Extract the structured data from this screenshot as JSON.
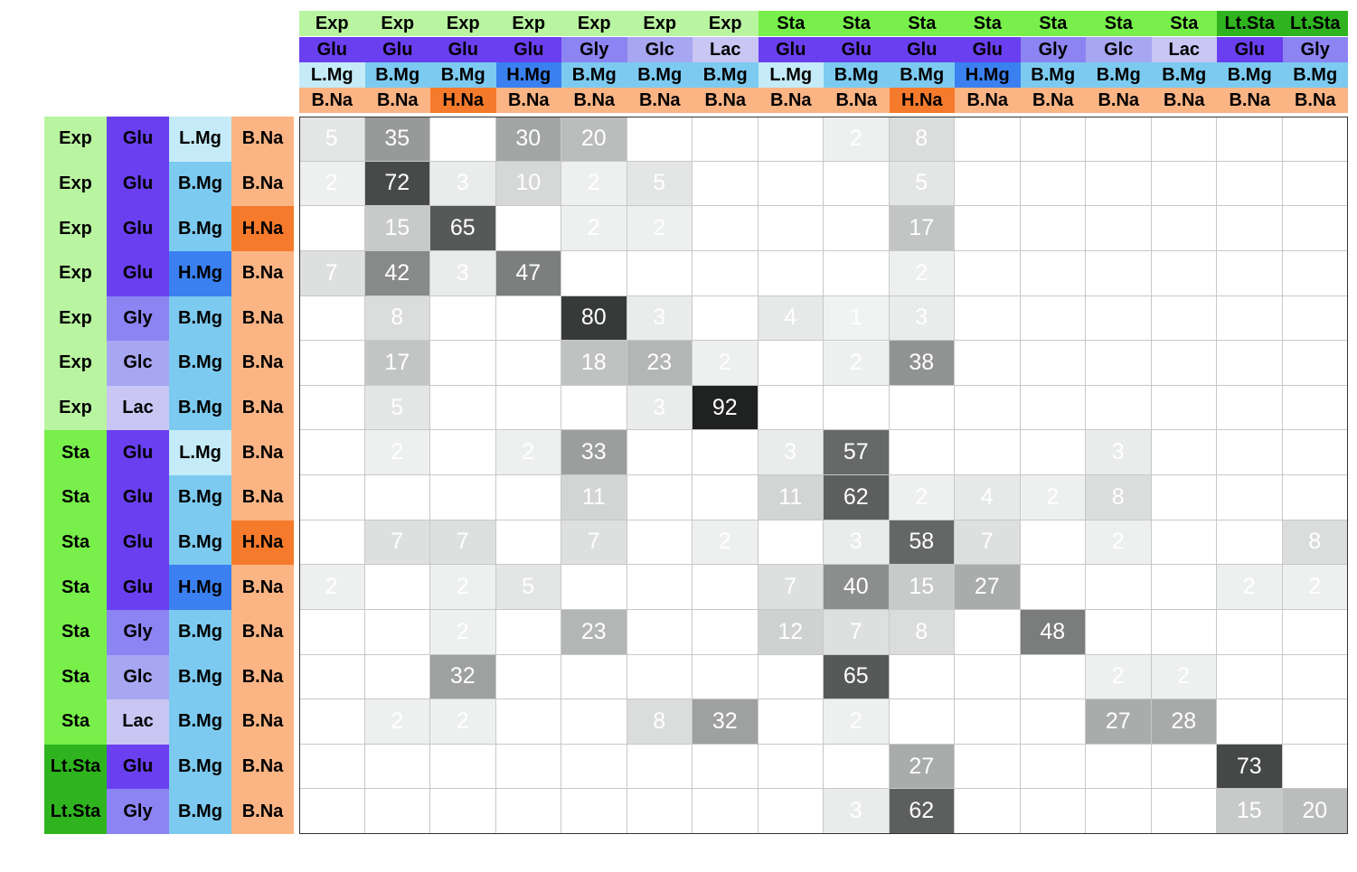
{
  "chart_data": {
    "type": "heatmap",
    "colors": {
      "growth": {
        "Exp": "#b9f4a0",
        "Sta": "#78ef4a",
        "Lt.Sta": "#2fb41f"
      },
      "carbon": {
        "Glu": "#6a3ff0",
        "Gly": "#8c84f2",
        "Glc": "#a7a6f1",
        "Lac": "#c9c6f4"
      },
      "mg": {
        "L.Mg": "#c4ebf7",
        "B.Mg": "#7ccaf0",
        "H.Mg": "#3a80f0"
      },
      "na": {
        "B.Na": "#fbb484",
        "H.Na": "#f57a2c"
      }
    },
    "conditions": [
      {
        "growth": "Exp",
        "carbon": "Glu",
        "mg": "L.Mg",
        "na": "B.Na"
      },
      {
        "growth": "Exp",
        "carbon": "Glu",
        "mg": "B.Mg",
        "na": "B.Na"
      },
      {
        "growth": "Exp",
        "carbon": "Glu",
        "mg": "B.Mg",
        "na": "H.Na"
      },
      {
        "growth": "Exp",
        "carbon": "Glu",
        "mg": "H.Mg",
        "na": "B.Na"
      },
      {
        "growth": "Exp",
        "carbon": "Gly",
        "mg": "B.Mg",
        "na": "B.Na"
      },
      {
        "growth": "Exp",
        "carbon": "Glc",
        "mg": "B.Mg",
        "na": "B.Na"
      },
      {
        "growth": "Exp",
        "carbon": "Lac",
        "mg": "B.Mg",
        "na": "B.Na"
      },
      {
        "growth": "Sta",
        "carbon": "Glu",
        "mg": "L.Mg",
        "na": "B.Na"
      },
      {
        "growth": "Sta",
        "carbon": "Glu",
        "mg": "B.Mg",
        "na": "B.Na"
      },
      {
        "growth": "Sta",
        "carbon": "Glu",
        "mg": "B.Mg",
        "na": "H.Na"
      },
      {
        "growth": "Sta",
        "carbon": "Glu",
        "mg": "H.Mg",
        "na": "B.Na"
      },
      {
        "growth": "Sta",
        "carbon": "Gly",
        "mg": "B.Mg",
        "na": "B.Na"
      },
      {
        "growth": "Sta",
        "carbon": "Glc",
        "mg": "B.Mg",
        "na": "B.Na"
      },
      {
        "growth": "Sta",
        "carbon": "Lac",
        "mg": "B.Mg",
        "na": "B.Na"
      },
      {
        "growth": "Lt.Sta",
        "carbon": "Glu",
        "mg": "B.Mg",
        "na": "B.Na"
      },
      {
        "growth": "Lt.Sta",
        "carbon": "Gly",
        "mg": "B.Mg",
        "na": "B.Na"
      }
    ],
    "matrix": [
      [
        5,
        35,
        null,
        30,
        20,
        null,
        null,
        null,
        2,
        8,
        null,
        null,
        null,
        null,
        null,
        null
      ],
      [
        2,
        72,
        3,
        10,
        2,
        5,
        null,
        null,
        null,
        5,
        null,
        null,
        null,
        null,
        null,
        null
      ],
      [
        null,
        15,
        65,
        null,
        2,
        2,
        null,
        null,
        null,
        17,
        null,
        null,
        null,
        null,
        null,
        null
      ],
      [
        7,
        42,
        3,
        47,
        null,
        null,
        null,
        null,
        null,
        2,
        null,
        null,
        null,
        null,
        null,
        null
      ],
      [
        null,
        8,
        null,
        null,
        80,
        3,
        null,
        4,
        1,
        3,
        null,
        null,
        null,
        null,
        null,
        null
      ],
      [
        null,
        17,
        null,
        null,
        18,
        23,
        2,
        null,
        2,
        38,
        null,
        null,
        null,
        null,
        null,
        null
      ],
      [
        null,
        5,
        null,
        null,
        null,
        3,
        92,
        null,
        null,
        null,
        null,
        null,
        null,
        null,
        null,
        null
      ],
      [
        null,
        2,
        null,
        2,
        33,
        null,
        null,
        3,
        57,
        null,
        null,
        null,
        3,
        null,
        null,
        null
      ],
      [
        null,
        null,
        null,
        null,
        11,
        null,
        null,
        11,
        62,
        2,
        4,
        2,
        8,
        null,
        null,
        null
      ],
      [
        null,
        7,
        7,
        null,
        7,
        null,
        2,
        null,
        3,
        58,
        7,
        null,
        2,
        null,
        null,
        8
      ],
      [
        2,
        null,
        2,
        5,
        null,
        null,
        null,
        7,
        40,
        15,
        27,
        null,
        null,
        null,
        2,
        2
      ],
      [
        null,
        null,
        2,
        null,
        23,
        null,
        null,
        12,
        7,
        8,
        null,
        48,
        null,
        null,
        null,
        null
      ],
      [
        null,
        null,
        32,
        null,
        null,
        null,
        null,
        null,
        65,
        null,
        null,
        null,
        2,
        2,
        null,
        null
      ],
      [
        null,
        2,
        2,
        null,
        null,
        8,
        32,
        null,
        2,
        null,
        null,
        null,
        27,
        28,
        null,
        null
      ],
      [
        null,
        null,
        null,
        null,
        null,
        null,
        null,
        null,
        null,
        27,
        null,
        null,
        null,
        null,
        73,
        null
      ],
      [
        null,
        null,
        null,
        null,
        null,
        null,
        null,
        null,
        3,
        62,
        null,
        null,
        null,
        null,
        15,
        20
      ]
    ],
    "value_range": [
      0,
      100
    ],
    "grid": true
  }
}
